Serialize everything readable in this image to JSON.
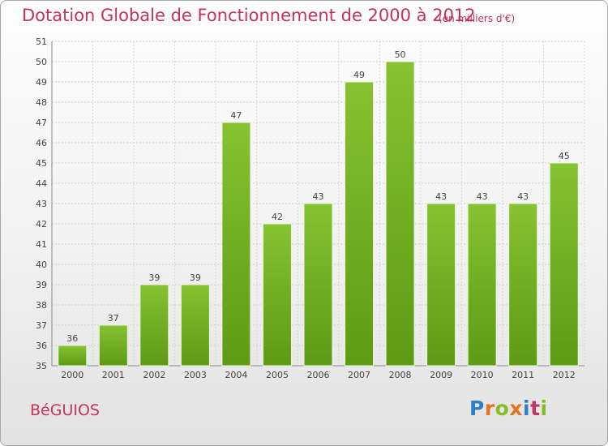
{
  "title": "Dotation Globale de Fonctionnement de 2000 à 2012",
  "subtitle": "(en milliers d'€)",
  "commune": "BéGUIOS",
  "logo": {
    "letters": [
      "P",
      "r",
      "o",
      "x",
      "i",
      "t",
      "i"
    ],
    "colors": [
      "#2f7fc8",
      "#e8731e",
      "#86bc28",
      "#e8731e",
      "#2f7fc8",
      "#c4335c",
      "#86bc28"
    ]
  },
  "chart_data": {
    "type": "bar",
    "title": "Dotation Globale de Fonctionnement de 2000 à 2012",
    "subtitle": "(en milliers d'€)",
    "categories": [
      "2000",
      "2001",
      "2002",
      "2003",
      "2004",
      "2005",
      "2006",
      "2007",
      "2008",
      "2009",
      "2010",
      "2011",
      "2012"
    ],
    "values": [
      36,
      37,
      39,
      39,
      47,
      42,
      43,
      49,
      50,
      43,
      43,
      43,
      45
    ],
    "ylim": [
      35,
      51
    ],
    "yticks": [
      35,
      36,
      37,
      38,
      39,
      40,
      41,
      42,
      43,
      44,
      45,
      46,
      47,
      48,
      49,
      50,
      51
    ],
    "grid": true,
    "bar_color": "#86c232",
    "bar_color_dark": "#5e9a14"
  }
}
